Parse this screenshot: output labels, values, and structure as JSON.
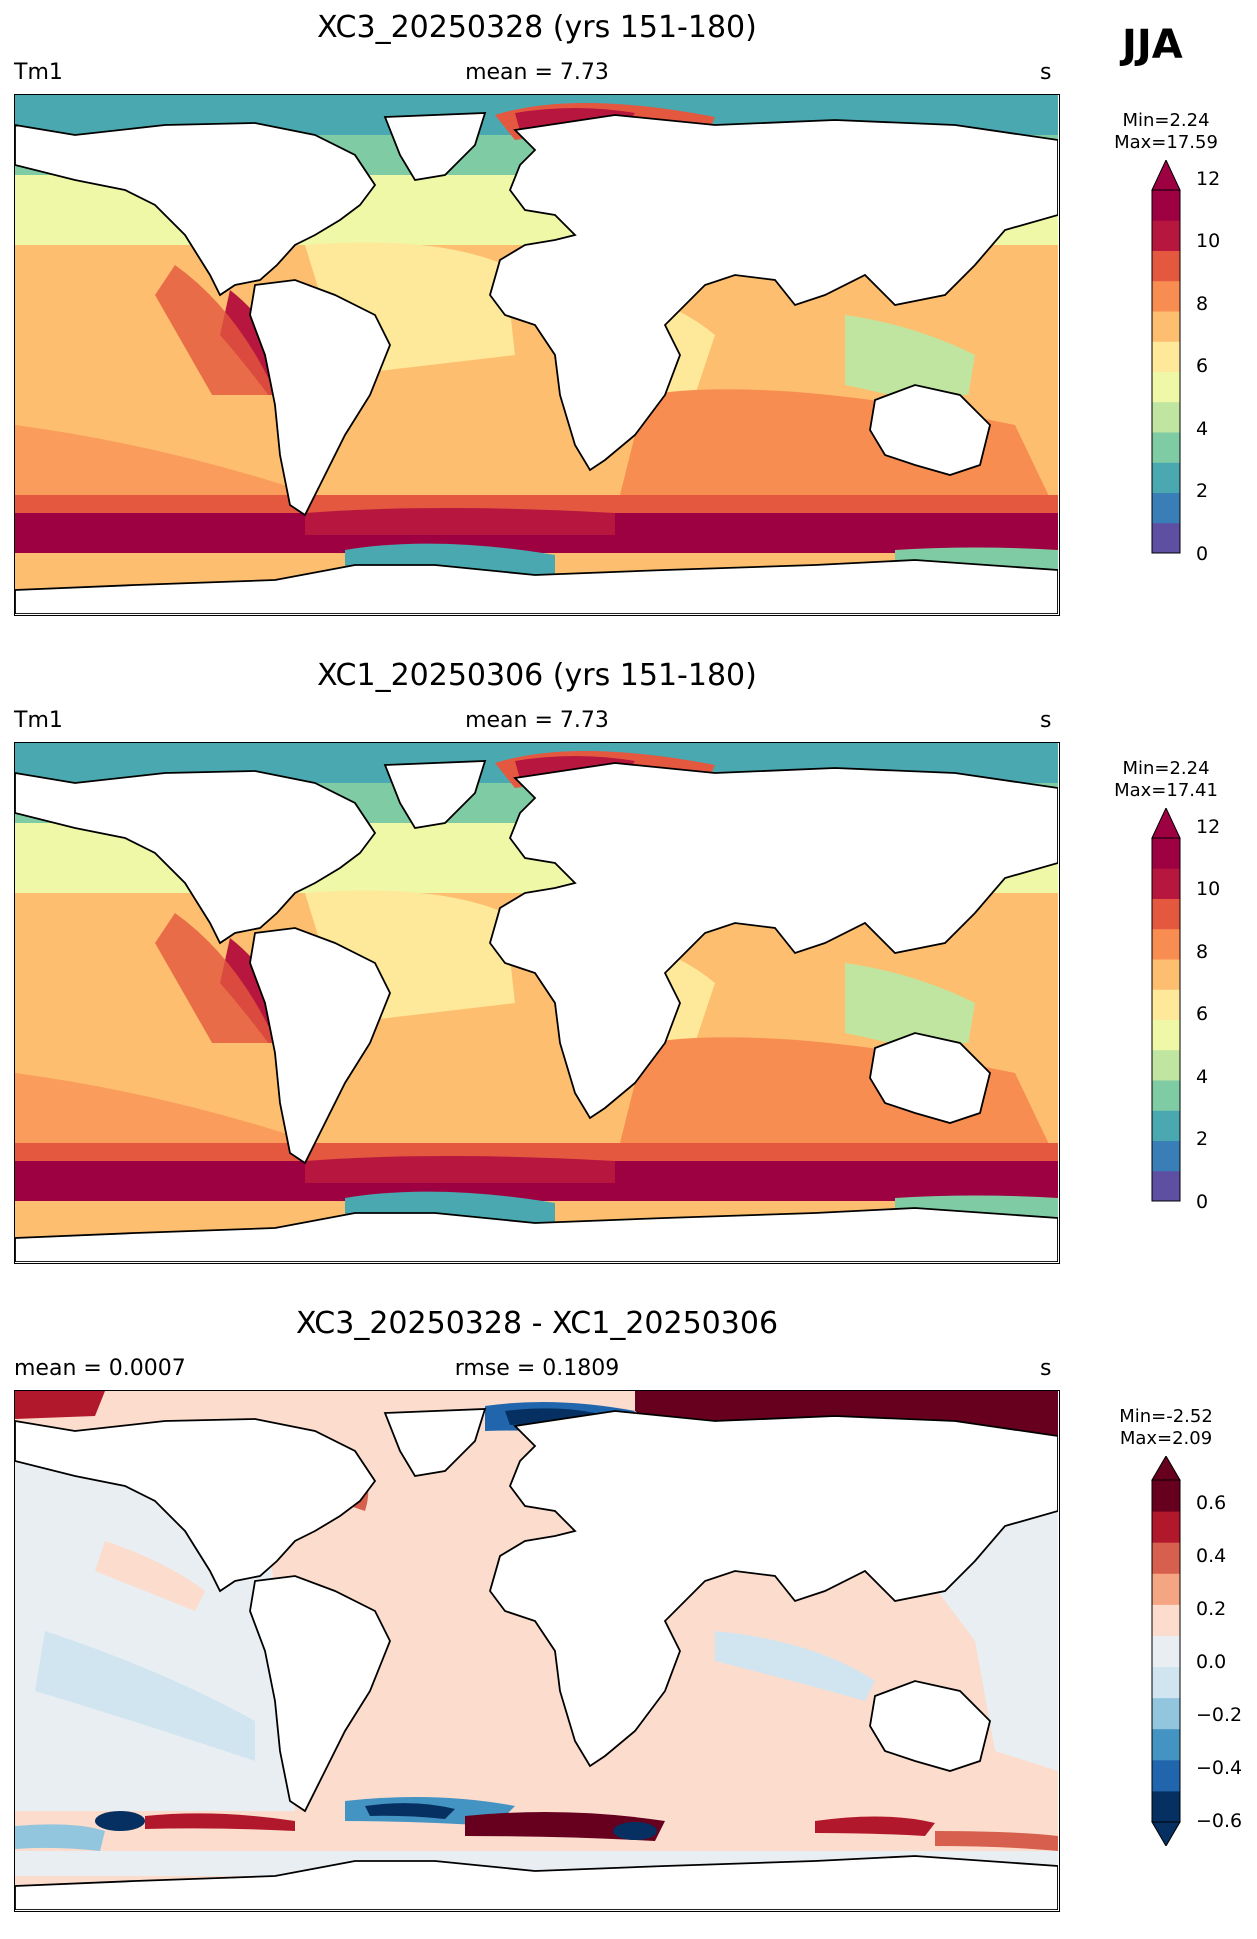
{
  "season": "JJA",
  "panels": [
    {
      "title": "XC3_20250328 (yrs 151-180)",
      "left_label": "Tm1",
      "center_label": "mean = 7.73",
      "right_label": "s",
      "min_label": "Min=2.24",
      "max_label": "Max=17.59",
      "colormap": "Spectral_r",
      "ticks": [
        "0",
        "2",
        "4",
        "6",
        "8",
        "10",
        "12"
      ]
    },
    {
      "title": "XC1_20250306 (yrs 151-180)",
      "left_label": "Tm1",
      "center_label": "mean = 7.73",
      "right_label": "s",
      "min_label": "Min=2.24",
      "max_label": "Max=17.41",
      "colormap": "Spectral_r",
      "ticks": [
        "0",
        "2",
        "4",
        "6",
        "8",
        "10",
        "12"
      ]
    },
    {
      "title": "XC3_20250328 - XC1_20250306",
      "left_label": "mean = 0.0007",
      "center_label": "rmse = 0.1809",
      "right_label": "s",
      "min_label": "Min=-2.52",
      "max_label": "Max=2.09",
      "colormap": "RdBu_r",
      "ticks": [
        "0.6",
        "0.4",
        "0.2",
        "0.0",
        "−0.2",
        "−0.4",
        "−0.6"
      ]
    }
  ],
  "colors": {
    "spectral": [
      "#5e4fa2",
      "#3a7eb8",
      "#4aa8b0",
      "#7fcca4",
      "#bfe5a0",
      "#eef8a6",
      "#fee89a",
      "#fdbf6f",
      "#f88d52",
      "#e4583f",
      "#b7163f",
      "#9e0142"
    ],
    "diverging": [
      "#053061",
      "#2166ac",
      "#4393c3",
      "#92c5de",
      "#d1e5f0",
      "#e9eef2",
      "#fbdccd",
      "#f4a582",
      "#d6604d",
      "#b2182b",
      "#67001f"
    ],
    "land": "#ffffff",
    "coast": "#000000"
  }
}
